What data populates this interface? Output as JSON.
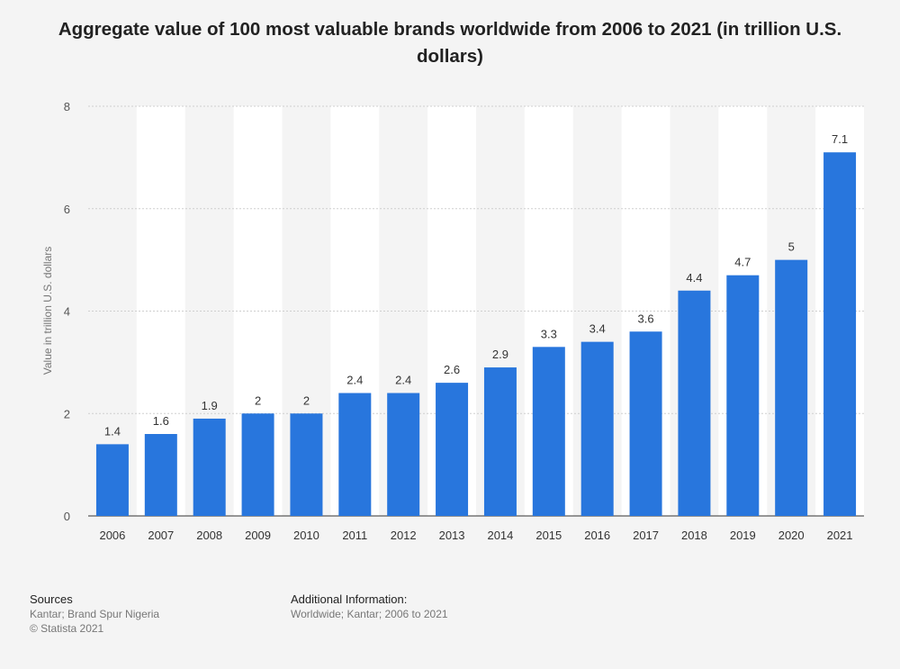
{
  "chart_data": {
    "type": "bar",
    "title": "Aggregate value of 100 most valuable brands worldwide from 2006 to 2021 (in trillion U.S. dollars)",
    "xlabel": "",
    "ylabel": "Value in trillion U.S. dollars",
    "categories": [
      "2006",
      "2007",
      "2008",
      "2009",
      "2010",
      "2011",
      "2012",
      "2013",
      "2014",
      "2015",
      "2016",
      "2017",
      "2018",
      "2019",
      "2020",
      "2021"
    ],
    "values": [
      1.4,
      1.6,
      1.9,
      2,
      2,
      2.4,
      2.4,
      2.6,
      2.9,
      3.3,
      3.4,
      3.6,
      4.4,
      4.7,
      5,
      7.1
    ],
    "value_labels": [
      "1.4",
      "1.6",
      "1.9",
      "2",
      "2",
      "2.4",
      "2.4",
      "2.6",
      "2.9",
      "3.3",
      "3.4",
      "3.6",
      "4.4",
      "4.7",
      "5",
      "7.1"
    ],
    "ylim": [
      0,
      8
    ],
    "yticks": [
      "0",
      "2",
      "4",
      "6",
      "8"
    ],
    "grid": true,
    "bar_color": "#2876dd"
  },
  "footer": {
    "sources_heading": "Sources",
    "sources_lines": [
      "Kantar; Brand Spur Nigeria",
      "© Statista 2021"
    ],
    "info_heading": "Additional Information:",
    "info_lines": [
      "Worldwide; Kantar; 2006 to 2021"
    ]
  }
}
